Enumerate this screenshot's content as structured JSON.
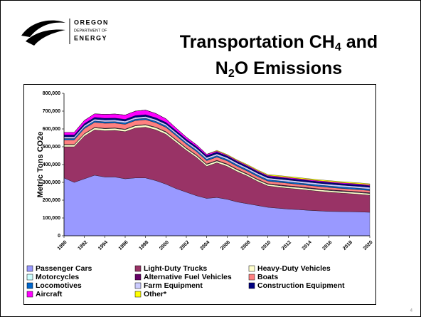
{
  "logo": {
    "line1": "OREGON",
    "line2": "DEPARTMENT OF",
    "line3": "ENERGY"
  },
  "title": {
    "line1": "Transportation CH",
    "sub1": "4",
    "line1_rest": " and",
    "line2": "N",
    "sub2": "2",
    "line2_rest": "O Emissions"
  },
  "page_number": "4",
  "chart_data": {
    "type": "stacked_area",
    "ylabel": "Metric Tons CO2e",
    "x": [
      1990,
      1991,
      1992,
      1993,
      1994,
      1995,
      1996,
      1997,
      1998,
      1999,
      2000,
      2001,
      2002,
      2003,
      2004,
      2005,
      2006,
      2007,
      2008,
      2009,
      2010,
      2011,
      2012,
      2013,
      2014,
      2015,
      2016,
      2017,
      2018,
      2019,
      2020
    ],
    "xlim": [
      1990,
      2020
    ],
    "xticks": [
      1990,
      1992,
      1994,
      1996,
      1998,
      2000,
      2002,
      2004,
      2006,
      2008,
      2010,
      2012,
      2014,
      2016,
      2018,
      2020
    ],
    "ylim": [
      0,
      800000
    ],
    "yticks": [
      0,
      {
        "value": 100000,
        "label": "100,000"
      },
      {
        "value": 200000,
        "label": "200,000"
      },
      {
        "value": 300000,
        "label": "300,000"
      },
      {
        "value": 400000,
        "label": "400,000"
      },
      {
        "value": 500000,
        "label": "500,000"
      },
      {
        "value": 600000,
        "label": "600,000"
      },
      {
        "value": 700000,
        "label": "700,000"
      },
      {
        "value": 800000,
        "label": "800,000"
      }
    ],
    "series": [
      {
        "name": "Passenger Cars",
        "color": "#9999ff",
        "values": [
          325000,
          300000,
          320000,
          340000,
          330000,
          330000,
          320000,
          325000,
          325000,
          310000,
          290000,
          265000,
          245000,
          225000,
          210000,
          215000,
          205000,
          190000,
          180000,
          170000,
          160000,
          155000,
          150000,
          147000,
          143000,
          140000,
          137000,
          136000,
          135000,
          134000,
          132000
        ]
      },
      {
        "name": "Light-Duty Trucks",
        "color": "#993366",
        "values": [
          175000,
          200000,
          240000,
          255000,
          260000,
          262000,
          265000,
          280000,
          285000,
          285000,
          280000,
          260000,
          235000,
          215000,
          180000,
          195000,
          185000,
          170000,
          155000,
          135000,
          120000,
          118000,
          117000,
          115000,
          113000,
          110000,
          108000,
          105000,
          102000,
          99000,
          96000
        ]
      },
      {
        "name": "Heavy-Duty Vehicles",
        "color": "#ffffcc",
        "values": [
          10000,
          10000,
          11000,
          11000,
          11000,
          11000,
          11000,
          12000,
          12000,
          12000,
          11000,
          11000,
          10000,
          10000,
          10000,
          10000,
          10000,
          10000,
          9000,
          9000,
          9000,
          9000,
          9000,
          9000,
          9000,
          9000,
          9000,
          9000,
          9000,
          9000,
          9000
        ]
      },
      {
        "name": "Motorcycles",
        "color": "#ccffff",
        "values": [
          2000,
          2000,
          2000,
          2000,
          2000,
          2000,
          2000,
          2000,
          2000,
          2000,
          2000,
          2000,
          2000,
          2000,
          2000,
          2000,
          2000,
          2000,
          2000,
          2000,
          2000,
          2000,
          2000,
          2000,
          2000,
          2000,
          2000,
          2000,
          2000,
          2000,
          2000
        ]
      },
      {
        "name": "Alternative Fuel Vehicles",
        "color": "#660066",
        "values": [
          1000,
          1000,
          1000,
          1000,
          1000,
          1000,
          1000,
          1000,
          1000,
          1000,
          2000,
          2000,
          2000,
          2000,
          2000,
          2000,
          2000,
          2000,
          2000,
          2000,
          2000,
          3000,
          3000,
          3000,
          3000,
          3000,
          3000,
          3000,
          3000,
          3000,
          3000
        ]
      },
      {
        "name": "Boats",
        "color": "#ff8080",
        "values": [
          25000,
          25000,
          28000,
          28000,
          28000,
          27000,
          27000,
          27000,
          27000,
          25000,
          24000,
          22000,
          20000,
          19000,
          18000,
          18000,
          17000,
          16000,
          15000,
          15000,
          14000,
          14000,
          14000,
          13000,
          13000,
          13000,
          13000,
          12000,
          12000,
          12000,
          12000
        ]
      },
      {
        "name": "Locomotives",
        "color": "#0066cc",
        "values": [
          8000,
          8000,
          8000,
          8000,
          8000,
          8000,
          8000,
          8000,
          8000,
          8000,
          8000,
          8000,
          8000,
          8000,
          8000,
          8000,
          8000,
          8000,
          8000,
          8000,
          8000,
          8000,
          8000,
          8000,
          8000,
          8000,
          8000,
          8000,
          8000,
          8000,
          8000
        ]
      },
      {
        "name": "Farm Equipment",
        "color": "#ccccff",
        "values": [
          10000,
          10000,
          10000,
          10000,
          10000,
          10000,
          10000,
          10000,
          10000,
          10000,
          10000,
          10000,
          10000,
          10000,
          10000,
          10000,
          10000,
          10000,
          10000,
          10000,
          10000,
          10000,
          10000,
          10000,
          10000,
          10000,
          10000,
          10000,
          10000,
          10000,
          10000
        ]
      },
      {
        "name": "Construction Equipment",
        "color": "#000080",
        "values": [
          10000,
          10000,
          10000,
          10000,
          10000,
          10000,
          10000,
          10000,
          10000,
          10000,
          10000,
          10000,
          10000,
          10000,
          10000,
          10000,
          9000,
          9000,
          9000,
          9000,
          9000,
          9000,
          9000,
          9000,
          9000,
          9000,
          9000,
          9000,
          9000,
          9000,
          9000
        ]
      },
      {
        "name": "Aircraft",
        "color": "#ff00ff",
        "values": [
          15000,
          15000,
          18000,
          20000,
          22000,
          23000,
          24000,
          25000,
          26000,
          24000,
          20000,
          15000,
          12000,
          10000,
          8000,
          6000,
          5000,
          5000,
          5000,
          5000,
          5000,
          5000,
          5000,
          5000,
          5000,
          5000,
          5000,
          5000,
          5000,
          5000,
          5000
        ]
      },
      {
        "name": "Other*",
        "color": "#ffff00",
        "values": [
          0,
          0,
          0,
          0,
          0,
          0,
          0,
          0,
          0,
          0,
          0,
          0,
          0,
          0,
          0,
          4000,
          4000,
          4000,
          5000,
          5000,
          5000,
          6000,
          6000,
          6000,
          6000,
          6000,
          6000,
          6000,
          6000,
          6000,
          6000
        ]
      }
    ]
  }
}
